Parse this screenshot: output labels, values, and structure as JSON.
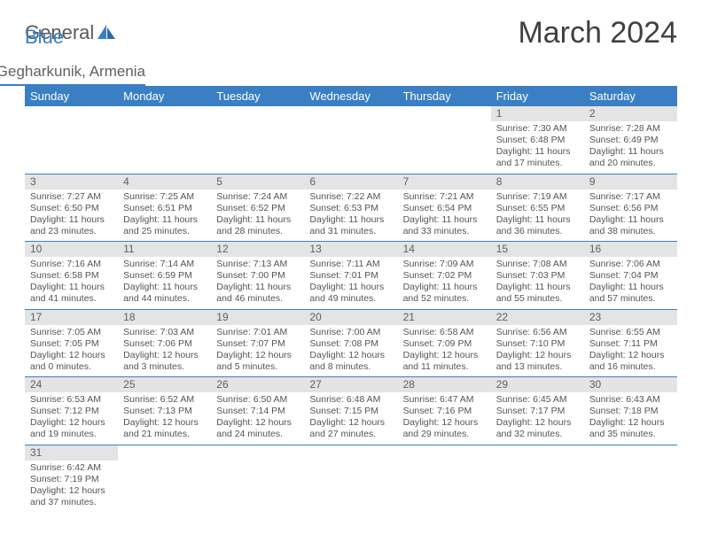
{
  "brand": {
    "part1": "General",
    "part2": "Blue"
  },
  "title": "March 2024",
  "location": "Mets Masrik, Gegharkunik, Armenia",
  "colors": {
    "accent": "#3a7fc4",
    "header_bg": "#3a7fc4",
    "header_text": "#ffffff",
    "daynum_bg": "#e4e4e4",
    "text": "#555555",
    "title_text": "#404040"
  },
  "weekdays": [
    "Sunday",
    "Monday",
    "Tuesday",
    "Wednesday",
    "Thursday",
    "Friday",
    "Saturday"
  ],
  "weeks": [
    [
      {
        "empty": true
      },
      {
        "empty": true
      },
      {
        "empty": true
      },
      {
        "empty": true
      },
      {
        "empty": true
      },
      {
        "day": "1",
        "sunrise": "Sunrise: 7:30 AM",
        "sunset": "Sunset: 6:48 PM",
        "daylight": "Daylight: 11 hours and 17 minutes."
      },
      {
        "day": "2",
        "sunrise": "Sunrise: 7:28 AM",
        "sunset": "Sunset: 6:49 PM",
        "daylight": "Daylight: 11 hours and 20 minutes."
      }
    ],
    [
      {
        "day": "3",
        "sunrise": "Sunrise: 7:27 AM",
        "sunset": "Sunset: 6:50 PM",
        "daylight": "Daylight: 11 hours and 23 minutes."
      },
      {
        "day": "4",
        "sunrise": "Sunrise: 7:25 AM",
        "sunset": "Sunset: 6:51 PM",
        "daylight": "Daylight: 11 hours and 25 minutes."
      },
      {
        "day": "5",
        "sunrise": "Sunrise: 7:24 AM",
        "sunset": "Sunset: 6:52 PM",
        "daylight": "Daylight: 11 hours and 28 minutes."
      },
      {
        "day": "6",
        "sunrise": "Sunrise: 7:22 AM",
        "sunset": "Sunset: 6:53 PM",
        "daylight": "Daylight: 11 hours and 31 minutes."
      },
      {
        "day": "7",
        "sunrise": "Sunrise: 7:21 AM",
        "sunset": "Sunset: 6:54 PM",
        "daylight": "Daylight: 11 hours and 33 minutes."
      },
      {
        "day": "8",
        "sunrise": "Sunrise: 7:19 AM",
        "sunset": "Sunset: 6:55 PM",
        "daylight": "Daylight: 11 hours and 36 minutes."
      },
      {
        "day": "9",
        "sunrise": "Sunrise: 7:17 AM",
        "sunset": "Sunset: 6:56 PM",
        "daylight": "Daylight: 11 hours and 38 minutes."
      }
    ],
    [
      {
        "day": "10",
        "sunrise": "Sunrise: 7:16 AM",
        "sunset": "Sunset: 6:58 PM",
        "daylight": "Daylight: 11 hours and 41 minutes."
      },
      {
        "day": "11",
        "sunrise": "Sunrise: 7:14 AM",
        "sunset": "Sunset: 6:59 PM",
        "daylight": "Daylight: 11 hours and 44 minutes."
      },
      {
        "day": "12",
        "sunrise": "Sunrise: 7:13 AM",
        "sunset": "Sunset: 7:00 PM",
        "daylight": "Daylight: 11 hours and 46 minutes."
      },
      {
        "day": "13",
        "sunrise": "Sunrise: 7:11 AM",
        "sunset": "Sunset: 7:01 PM",
        "daylight": "Daylight: 11 hours and 49 minutes."
      },
      {
        "day": "14",
        "sunrise": "Sunrise: 7:09 AM",
        "sunset": "Sunset: 7:02 PM",
        "daylight": "Daylight: 11 hours and 52 minutes."
      },
      {
        "day": "15",
        "sunrise": "Sunrise: 7:08 AM",
        "sunset": "Sunset: 7:03 PM",
        "daylight": "Daylight: 11 hours and 55 minutes."
      },
      {
        "day": "16",
        "sunrise": "Sunrise: 7:06 AM",
        "sunset": "Sunset: 7:04 PM",
        "daylight": "Daylight: 11 hours and 57 minutes."
      }
    ],
    [
      {
        "day": "17",
        "sunrise": "Sunrise: 7:05 AM",
        "sunset": "Sunset: 7:05 PM",
        "daylight": "Daylight: 12 hours and 0 minutes."
      },
      {
        "day": "18",
        "sunrise": "Sunrise: 7:03 AM",
        "sunset": "Sunset: 7:06 PM",
        "daylight": "Daylight: 12 hours and 3 minutes."
      },
      {
        "day": "19",
        "sunrise": "Sunrise: 7:01 AM",
        "sunset": "Sunset: 7:07 PM",
        "daylight": "Daylight: 12 hours and 5 minutes."
      },
      {
        "day": "20",
        "sunrise": "Sunrise: 7:00 AM",
        "sunset": "Sunset: 7:08 PM",
        "daylight": "Daylight: 12 hours and 8 minutes."
      },
      {
        "day": "21",
        "sunrise": "Sunrise: 6:58 AM",
        "sunset": "Sunset: 7:09 PM",
        "daylight": "Daylight: 12 hours and 11 minutes."
      },
      {
        "day": "22",
        "sunrise": "Sunrise: 6:56 AM",
        "sunset": "Sunset: 7:10 PM",
        "daylight": "Daylight: 12 hours and 13 minutes."
      },
      {
        "day": "23",
        "sunrise": "Sunrise: 6:55 AM",
        "sunset": "Sunset: 7:11 PM",
        "daylight": "Daylight: 12 hours and 16 minutes."
      }
    ],
    [
      {
        "day": "24",
        "sunrise": "Sunrise: 6:53 AM",
        "sunset": "Sunset: 7:12 PM",
        "daylight": "Daylight: 12 hours and 19 minutes."
      },
      {
        "day": "25",
        "sunrise": "Sunrise: 6:52 AM",
        "sunset": "Sunset: 7:13 PM",
        "daylight": "Daylight: 12 hours and 21 minutes."
      },
      {
        "day": "26",
        "sunrise": "Sunrise: 6:50 AM",
        "sunset": "Sunset: 7:14 PM",
        "daylight": "Daylight: 12 hours and 24 minutes."
      },
      {
        "day": "27",
        "sunrise": "Sunrise: 6:48 AM",
        "sunset": "Sunset: 7:15 PM",
        "daylight": "Daylight: 12 hours and 27 minutes."
      },
      {
        "day": "28",
        "sunrise": "Sunrise: 6:47 AM",
        "sunset": "Sunset: 7:16 PM",
        "daylight": "Daylight: 12 hours and 29 minutes."
      },
      {
        "day": "29",
        "sunrise": "Sunrise: 6:45 AM",
        "sunset": "Sunset: 7:17 PM",
        "daylight": "Daylight: 12 hours and 32 minutes."
      },
      {
        "day": "30",
        "sunrise": "Sunrise: 6:43 AM",
        "sunset": "Sunset: 7:18 PM",
        "daylight": "Daylight: 12 hours and 35 minutes."
      }
    ],
    [
      {
        "day": "31",
        "sunrise": "Sunrise: 6:42 AM",
        "sunset": "Sunset: 7:19 PM",
        "daylight": "Daylight: 12 hours and 37 minutes."
      },
      {
        "empty": true
      },
      {
        "empty": true
      },
      {
        "empty": true
      },
      {
        "empty": true
      },
      {
        "empty": true
      },
      {
        "empty": true
      }
    ]
  ]
}
